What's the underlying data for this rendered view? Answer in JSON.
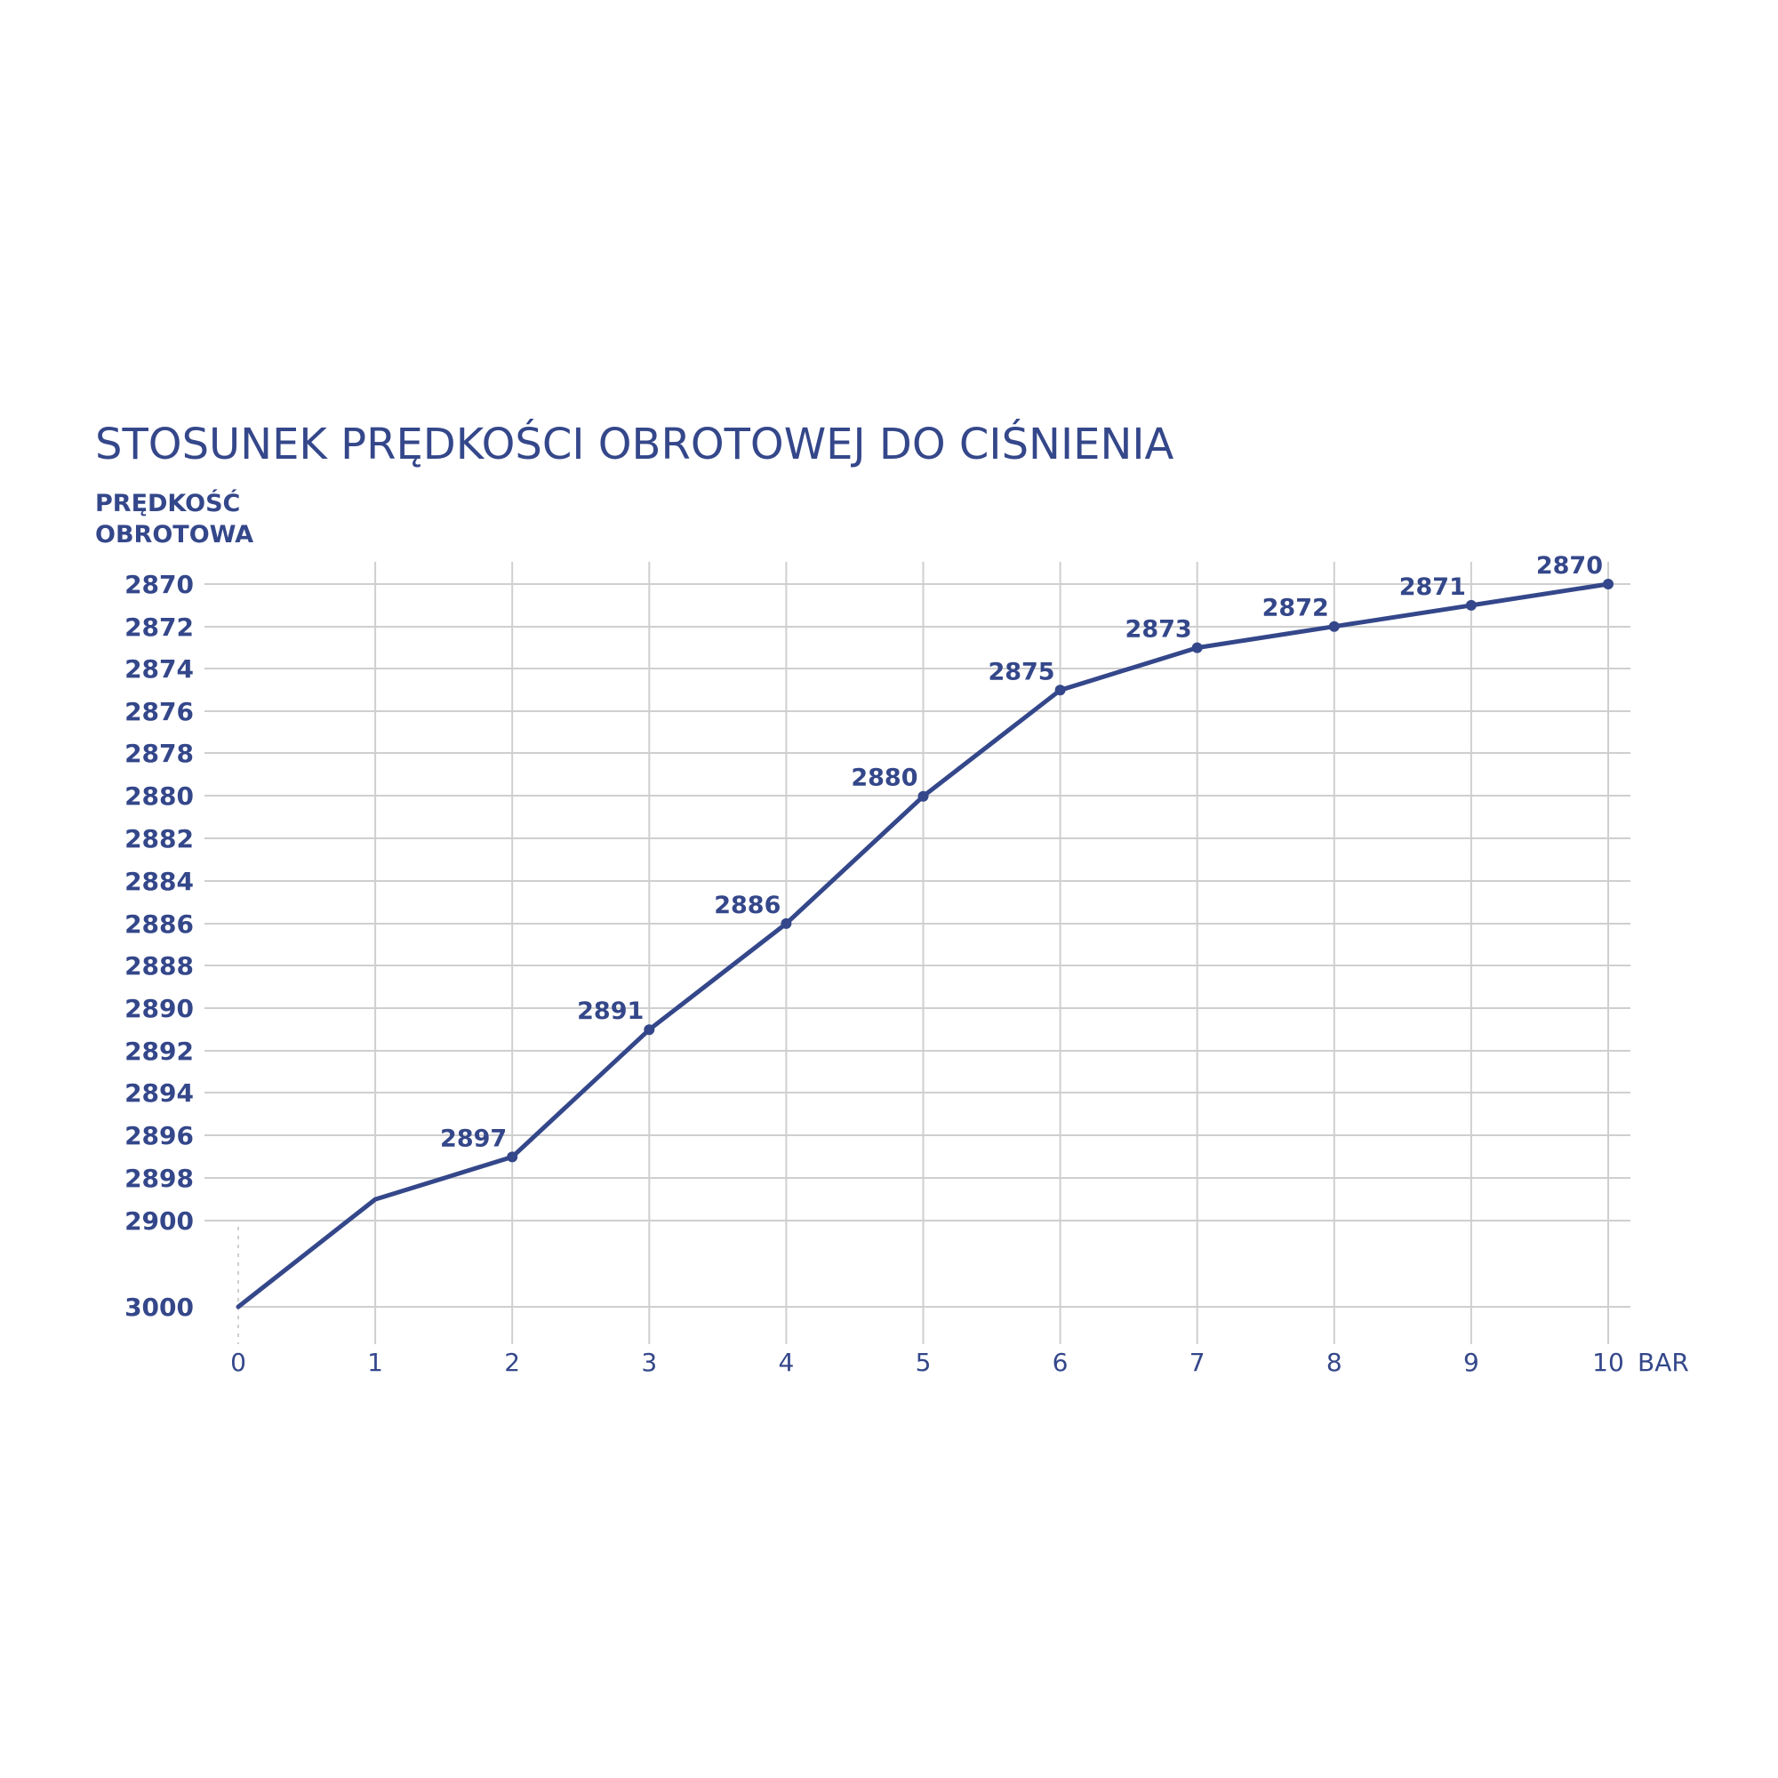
{
  "chart_data": {
    "type": "line",
    "title": "STOSUNEK PRĘDKOŚCI OBROTOWEJ DO CIŚNIENIA",
    "ylabel_lines": [
      "PRĘDKOŚĆ",
      "OBROTOWA"
    ],
    "xlabel": "BAR",
    "x": [
      0,
      1,
      2,
      3,
      4,
      5,
      6,
      7,
      8,
      9,
      10
    ],
    "xticks": [
      "0",
      "1",
      "2",
      "3",
      "4",
      "5",
      "6",
      "7",
      "8",
      "9",
      "10"
    ],
    "yticks": [
      "2870",
      "2872",
      "2874",
      "2876",
      "2878",
      "2880",
      "2882",
      "2884",
      "2886",
      "2888",
      "2890",
      "2892",
      "2894",
      "2896",
      "2898",
      "2900",
      "3000"
    ],
    "series": [
      {
        "x": [
          0,
          1,
          2,
          3,
          4,
          5,
          6,
          7,
          8,
          9,
          10
        ],
        "values": [
          3000,
          2899,
          2897,
          2891,
          2886,
          2880,
          2875,
          2873,
          2872,
          2871,
          2870
        ],
        "labeled_points": [
          2,
          3,
          4,
          5,
          6,
          7,
          8,
          9,
          10
        ]
      }
    ],
    "data_labels": [
      "2897",
      "2891",
      "2886",
      "2880",
      "2875",
      "2873",
      "2872",
      "2871",
      "2870"
    ],
    "y_inverted": true,
    "grid": true,
    "colors": {
      "series": "#34478a",
      "grid": "#cfcfcf",
      "text": "#34478a"
    }
  }
}
